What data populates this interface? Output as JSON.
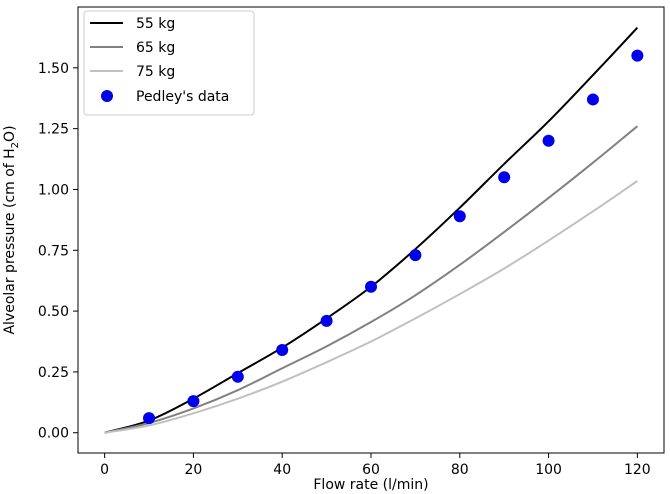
{
  "chart_data": {
    "type": "line",
    "xlabel": "Flow rate (l/min)",
    "ylabel_main": "Alveolar pressure (cm of H",
    "ylabel_sub": "2",
    "ylabel_end": "O)",
    "xlim": [
      -6,
      126
    ],
    "ylim": [
      -0.08333,
      1.75
    ],
    "xticks": [
      0,
      20,
      40,
      60,
      80,
      100,
      120
    ],
    "xtick_labels": [
      "0",
      "20",
      "40",
      "60",
      "80",
      "100",
      "120"
    ],
    "yticks": [
      0,
      0.25,
      0.5,
      0.75,
      1.0,
      1.25,
      1.5
    ],
    "ytick_labels": [
      "0.00",
      "0.25",
      "0.50",
      "0.75",
      "1.00",
      "1.25",
      "1.50"
    ],
    "legend_position": "top-left",
    "series": [
      {
        "name": "55 kg",
        "kind": "line",
        "color": "#000000",
        "x": [
          0,
          10,
          20,
          30,
          40,
          50,
          60,
          70,
          80,
          90,
          100,
          110,
          120
        ],
        "y": [
          0,
          0.05,
          0.14,
          0.245,
          0.35,
          0.47,
          0.6,
          0.755,
          0.925,
          1.105,
          1.28,
          1.47,
          1.665
        ]
      },
      {
        "name": "65 kg",
        "kind": "line",
        "color": "#808080",
        "x": [
          0,
          10,
          20,
          30,
          40,
          50,
          60,
          70,
          80,
          90,
          100,
          110,
          120
        ],
        "y": [
          0,
          0.04,
          0.1,
          0.175,
          0.265,
          0.355,
          0.455,
          0.565,
          0.69,
          0.825,
          0.965,
          1.11,
          1.26
        ]
      },
      {
        "name": "75 kg",
        "kind": "line",
        "color": "#c0c0c0",
        "x": [
          0,
          10,
          20,
          30,
          40,
          50,
          60,
          70,
          80,
          90,
          100,
          110,
          120
        ],
        "y": [
          0,
          0.03,
          0.08,
          0.14,
          0.21,
          0.29,
          0.375,
          0.47,
          0.57,
          0.675,
          0.79,
          0.91,
          1.035
        ]
      },
      {
        "name": "Pedley's data",
        "kind": "scatter",
        "color": "#0000ee",
        "x": [
          10,
          20,
          30,
          40,
          50,
          60,
          70,
          80,
          90,
          100,
          110,
          120
        ],
        "y": [
          0.06,
          0.13,
          0.23,
          0.34,
          0.46,
          0.6,
          0.73,
          0.89,
          1.05,
          1.2,
          1.37,
          1.55
        ]
      }
    ]
  }
}
